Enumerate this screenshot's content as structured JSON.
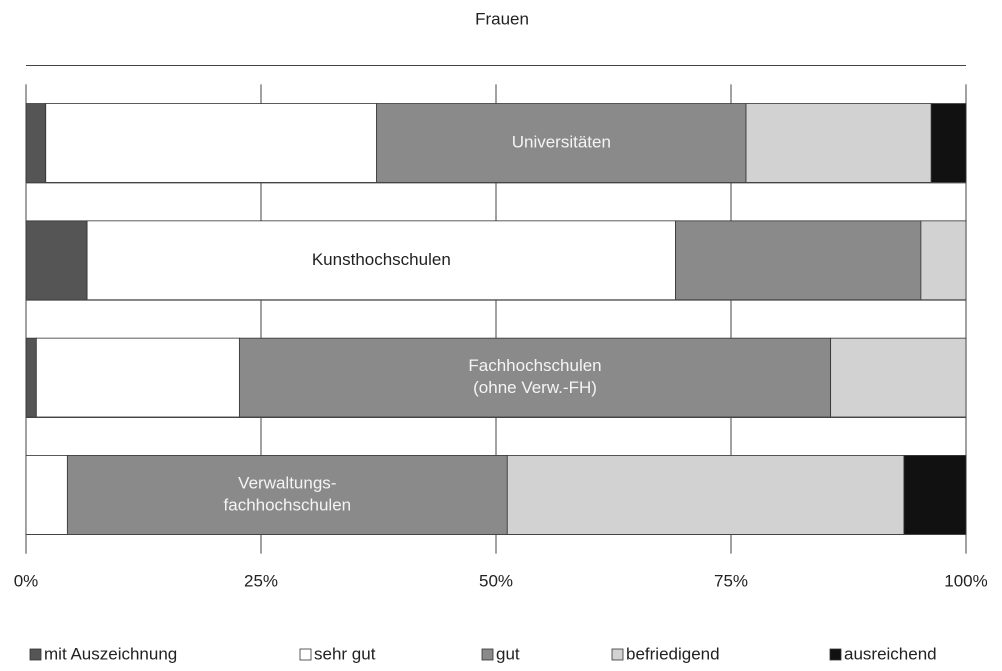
{
  "chart_data": {
    "type": "stacked-barh",
    "title": "Frauen",
    "categories": [
      [
        "Universitäten"
      ],
      [
        "Kunsthochschulen"
      ],
      [
        "Fachhochschulen",
        "(ohne Verw.-FH)"
      ],
      [
        "Verwaltungs-",
        "fachhochschulen"
      ]
    ],
    "series": [
      {
        "name": "mit Auszeichnung",
        "color": "#555555",
        "values": [
          2.1,
          6.5,
          1.1,
          0
        ]
      },
      {
        "name": "sehr gut",
        "color": "#ffffff",
        "values": [
          35.2,
          62.6,
          21.6,
          4.4
        ]
      },
      {
        "name": "gut",
        "color": "#8a8a8a",
        "values": [
          39.3,
          26.1,
          62.9,
          46.8
        ]
      },
      {
        "name": "befriedigend",
        "color": "#d2d2d2",
        "values": [
          19.7,
          4.8,
          14.4,
          42.2
        ]
      },
      {
        "name": "ausreichend",
        "color": "#111111",
        "values": [
          3.7,
          0,
          0,
          6.6
        ]
      }
    ],
    "xlim": [
      0,
      100
    ],
    "xticks": [
      {
        "value": 0,
        "label": "0%"
      },
      {
        "value": 25,
        "label": "25%"
      },
      {
        "value": 50,
        "label": "50%"
      },
      {
        "value": 75,
        "label": "75%"
      },
      {
        "value": 100,
        "label": "100%"
      }
    ],
    "grid": true,
    "legend": "bottom"
  }
}
